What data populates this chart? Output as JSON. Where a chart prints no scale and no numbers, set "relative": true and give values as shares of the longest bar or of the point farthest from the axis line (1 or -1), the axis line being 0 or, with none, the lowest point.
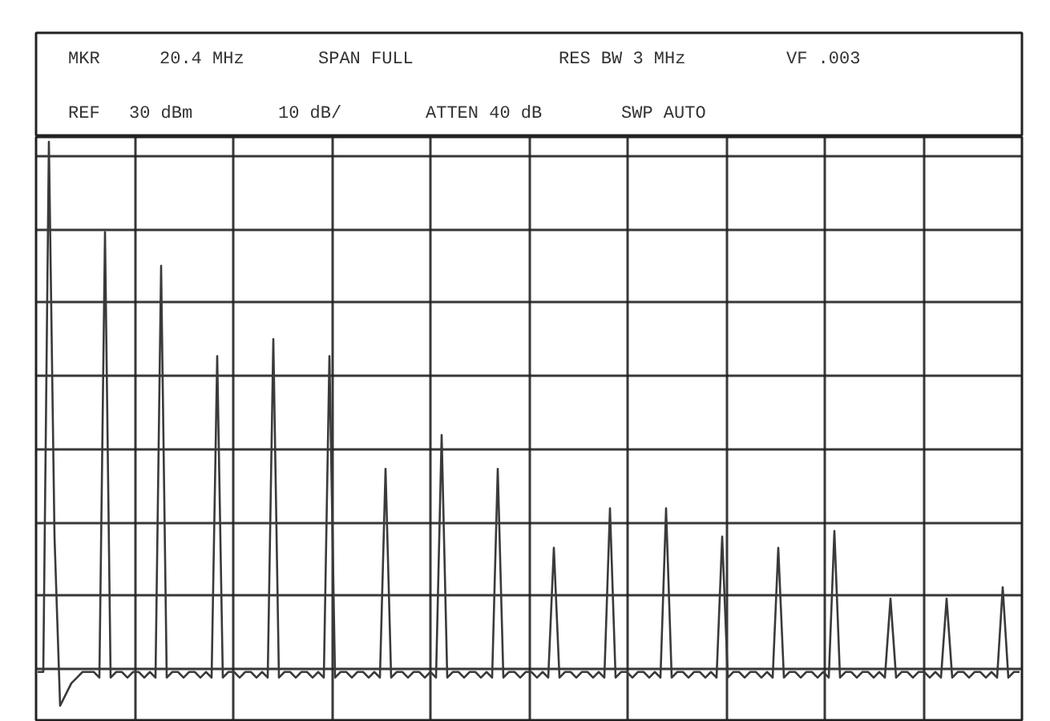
{
  "chart_data": {
    "type": "line",
    "relative": true,
    "grid": true,
    "color": "#3a3a3a",
    "annotations": [
      "MKR",
      "20.4 MHz",
      "SPAN FULL",
      "RES BW 3 MHz",
      "VF .003",
      "REF",
      "30 dBm",
      "10 dB/",
      "ATTEN 40 dB",
      "SWP AUTO"
    ],
    "categories": [
      null,
      null,
      null,
      null,
      null,
      null,
      null,
      null,
      null,
      null,
      null,
      null,
      null,
      null,
      null,
      null,
      null,
      null,
      null,
      null,
      null,
      null,
      null,
      null,
      null,
      null,
      null,
      null,
      null,
      null,
      null,
      null,
      null,
      null,
      null,
      null,
      null,
      null,
      null,
      null,
      null,
      null,
      null,
      null,
      null,
      null,
      null,
      null,
      null,
      null,
      null,
      null,
      null,
      null,
      null,
      null,
      null,
      null,
      null,
      null,
      null,
      null,
      null,
      null,
      null,
      null,
      null,
      null,
      null,
      null,
      null,
      null,
      null,
      null,
      null,
      null,
      null,
      null,
      null,
      null,
      null,
      null,
      null,
      null,
      null,
      null,
      null,
      null,
      null,
      null,
      null,
      null,
      null,
      null,
      null,
      null,
      null,
      null,
      null,
      null,
      null,
      null,
      null,
      null,
      null,
      null,
      null,
      null,
      null,
      null,
      null,
      null,
      null,
      null,
      null,
      null,
      null,
      null,
      null,
      null,
      null,
      null,
      null,
      null,
      null,
      null,
      null,
      null,
      null,
      null,
      null,
      null,
      null,
      null,
      null,
      null,
      null,
      null,
      null,
      null,
      null,
      null,
      null,
      null,
      null,
      null,
      null,
      null,
      null,
      null,
      null,
      null,
      null,
      null,
      null,
      null,
      null,
      null,
      null,
      null,
      null,
      null,
      null,
      null,
      null,
      null,
      null,
      null,
      null,
      null,
      null,
      null,
      null,
      null,
      null,
      null
    ],
    "values": [
      0.06,
      0.06,
      1.0,
      0.3,
      0.0,
      0.02,
      0.04,
      0.05,
      0.06,
      0.06,
      0.06,
      0.05,
      0.84,
      0.05,
      0.06,
      0.06,
      0.05,
      0.06,
      0.06,
      0.05,
      0.06,
      0.05,
      0.78,
      0.05,
      0.06,
      0.06,
      0.05,
      0.06,
      0.06,
      0.05,
      0.06,
      0.05,
      0.62,
      0.05,
      0.06,
      0.06,
      0.05,
      0.06,
      0.06,
      0.05,
      0.06,
      0.05,
      0.65,
      0.05,
      0.06,
      0.06,
      0.05,
      0.06,
      0.06,
      0.05,
      0.06,
      0.05,
      0.62,
      0.05,
      0.06,
      0.06,
      0.05,
      0.06,
      0.06,
      0.05,
      0.06,
      0.05,
      0.42,
      0.05,
      0.06,
      0.06,
      0.05,
      0.06,
      0.06,
      0.05,
      0.06,
      0.05,
      0.48,
      0.05,
      0.06,
      0.06,
      0.05,
      0.06,
      0.06,
      0.05,
      0.06,
      0.05,
      0.42,
      0.05,
      0.06,
      0.06,
      0.05,
      0.06,
      0.06,
      0.05,
      0.06,
      0.05,
      0.28,
      0.05,
      0.06,
      0.06,
      0.05,
      0.06,
      0.06,
      0.05,
      0.06,
      0.05,
      0.35,
      0.05,
      0.06,
      0.06,
      0.05,
      0.06,
      0.06,
      0.05,
      0.06,
      0.05,
      0.35,
      0.05,
      0.06,
      0.06,
      0.05,
      0.06,
      0.06,
      0.05,
      0.06,
      0.05,
      0.3,
      0.05,
      0.06,
      0.06,
      0.05,
      0.06,
      0.06,
      0.05,
      0.06,
      0.05,
      0.28,
      0.05,
      0.06,
      0.06,
      0.05,
      0.06,
      0.06,
      0.05,
      0.06,
      0.05,
      0.31,
      0.05,
      0.06,
      0.06,
      0.05,
      0.06,
      0.06,
      0.05,
      0.06,
      0.05,
      0.19,
      0.05,
      0.06,
      0.06,
      0.05,
      0.06,
      0.06,
      0.05,
      0.06,
      0.05,
      0.19,
      0.05,
      0.06,
      0.06,
      0.05,
      0.06,
      0.06,
      0.05,
      0.06,
      0.05,
      0.21,
      0.05,
      0.06,
      0.06
    ]
  }
}
